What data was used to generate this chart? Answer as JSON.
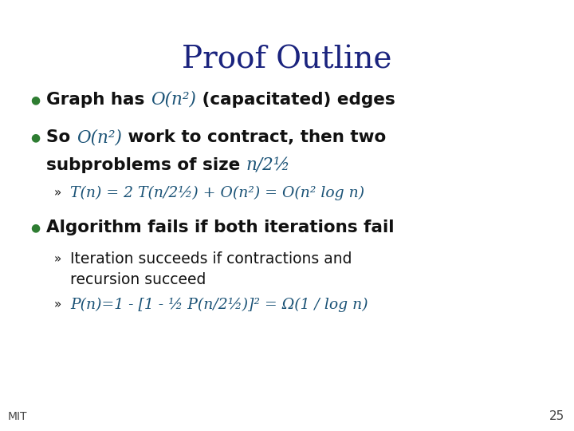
{
  "title": "Proof Outline",
  "title_color": "#1a237e",
  "title_fontsize": 28,
  "background_color": "#ffffff",
  "bullet_color": "#2e7d32",
  "body_color": "#111111",
  "math_color": "#1a5276",
  "line_dark": "#1a3a6b",
  "line_green": "#2e7d32",
  "mit_text": "MIT",
  "page_num": "25"
}
